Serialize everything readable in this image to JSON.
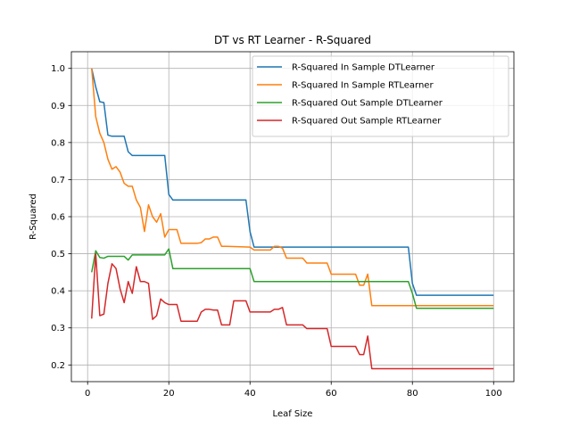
{
  "chart_data": {
    "type": "line",
    "title": "DT vs RT Learner - R-Squared",
    "xlabel": "Leaf Size",
    "ylabel": "R-Squared",
    "xlim": [
      -4.0,
      105.0
    ],
    "ylim": [
      0.155,
      1.045
    ],
    "xticks": [
      0,
      20,
      40,
      60,
      80,
      100
    ],
    "yticks": [
      0.2,
      0.3,
      0.4,
      0.5,
      0.6,
      0.7,
      0.8,
      0.9,
      1.0
    ],
    "grid": true,
    "legend_position": "top-right",
    "series": [
      {
        "name": "R-Squared In Sample DTLearner",
        "color": "#1f77b4",
        "points": [
          [
            1,
            1.0
          ],
          [
            2,
            0.95
          ],
          [
            3,
            0.91
          ],
          [
            4,
            0.908
          ],
          [
            5,
            0.82
          ],
          [
            6,
            0.817
          ],
          [
            7,
            0.817
          ],
          [
            8,
            0.817
          ],
          [
            9,
            0.817
          ],
          [
            10,
            0.775
          ],
          [
            11,
            0.765
          ],
          [
            12,
            0.765
          ],
          [
            19,
            0.765
          ],
          [
            20,
            0.66
          ],
          [
            21,
            0.645
          ],
          [
            22,
            0.645
          ],
          [
            39,
            0.645
          ],
          [
            40,
            0.56
          ],
          [
            41,
            0.518
          ],
          [
            79,
            0.518
          ],
          [
            80,
            0.42
          ],
          [
            81,
            0.388
          ],
          [
            100,
            0.388
          ]
        ]
      },
      {
        "name": "R-Squared In Sample RTLearner",
        "color": "#ff7f0e",
        "points": [
          [
            1,
            1.0
          ],
          [
            2,
            0.87
          ],
          [
            3,
            0.825
          ],
          [
            4,
            0.8
          ],
          [
            5,
            0.755
          ],
          [
            6,
            0.728
          ],
          [
            7,
            0.735
          ],
          [
            8,
            0.72
          ],
          [
            9,
            0.69
          ],
          [
            10,
            0.682
          ],
          [
            11,
            0.682
          ],
          [
            12,
            0.645
          ],
          [
            13,
            0.625
          ],
          [
            14,
            0.56
          ],
          [
            15,
            0.632
          ],
          [
            16,
            0.6
          ],
          [
            17,
            0.585
          ],
          [
            18,
            0.608
          ],
          [
            19,
            0.545
          ],
          [
            20,
            0.565
          ],
          [
            21,
            0.565
          ],
          [
            22,
            0.565
          ],
          [
            23,
            0.528
          ],
          [
            24,
            0.528
          ],
          [
            27,
            0.528
          ],
          [
            28,
            0.53
          ],
          [
            29,
            0.54
          ],
          [
            30,
            0.54
          ],
          [
            31,
            0.545
          ],
          [
            32,
            0.545
          ],
          [
            33,
            0.52
          ],
          [
            34,
            0.52
          ],
          [
            40,
            0.518
          ],
          [
            41,
            0.51
          ],
          [
            42,
            0.51
          ],
          [
            45,
            0.51
          ],
          [
            46,
            0.52
          ],
          [
            47,
            0.52
          ],
          [
            48,
            0.515
          ],
          [
            49,
            0.488
          ],
          [
            50,
            0.488
          ],
          [
            53,
            0.488
          ],
          [
            54,
            0.475
          ],
          [
            55,
            0.475
          ],
          [
            59,
            0.475
          ],
          [
            60,
            0.445
          ],
          [
            61,
            0.445
          ],
          [
            66,
            0.445
          ],
          [
            67,
            0.415
          ],
          [
            68,
            0.415
          ],
          [
            69,
            0.445
          ],
          [
            70,
            0.36
          ],
          [
            71,
            0.36
          ],
          [
            100,
            0.36
          ]
        ]
      },
      {
        "name": "R-Squared Out Sample DTLearner",
        "color": "#2ca02c",
        "points": [
          [
            1,
            0.45
          ],
          [
            2,
            0.508
          ],
          [
            3,
            0.49
          ],
          [
            4,
            0.488
          ],
          [
            5,
            0.493
          ],
          [
            6,
            0.493
          ],
          [
            9,
            0.493
          ],
          [
            10,
            0.483
          ],
          [
            11,
            0.497
          ],
          [
            12,
            0.497
          ],
          [
            19,
            0.497
          ],
          [
            20,
            0.513
          ],
          [
            21,
            0.46
          ],
          [
            22,
            0.46
          ],
          [
            40,
            0.46
          ],
          [
            41,
            0.425
          ],
          [
            42,
            0.425
          ],
          [
            79,
            0.425
          ],
          [
            80,
            0.393
          ],
          [
            81,
            0.353
          ],
          [
            100,
            0.353
          ]
        ]
      },
      {
        "name": "R-Squared Out Sample RTLearner",
        "color": "#d62728",
        "points": [
          [
            1,
            0.325
          ],
          [
            2,
            0.5
          ],
          [
            3,
            0.333
          ],
          [
            4,
            0.337
          ],
          [
            5,
            0.42
          ],
          [
            6,
            0.473
          ],
          [
            7,
            0.46
          ],
          [
            8,
            0.405
          ],
          [
            9,
            0.368
          ],
          [
            10,
            0.425
          ],
          [
            11,
            0.393
          ],
          [
            12,
            0.465
          ],
          [
            13,
            0.425
          ],
          [
            14,
            0.425
          ],
          [
            15,
            0.42
          ],
          [
            16,
            0.323
          ],
          [
            17,
            0.333
          ],
          [
            18,
            0.378
          ],
          [
            19,
            0.368
          ],
          [
            20,
            0.363
          ],
          [
            21,
            0.363
          ],
          [
            22,
            0.363
          ],
          [
            23,
            0.318
          ],
          [
            24,
            0.318
          ],
          [
            27,
            0.318
          ],
          [
            28,
            0.343
          ],
          [
            29,
            0.35
          ],
          [
            30,
            0.35
          ],
          [
            31,
            0.348
          ],
          [
            32,
            0.348
          ],
          [
            33,
            0.308
          ],
          [
            34,
            0.308
          ],
          [
            35,
            0.308
          ],
          [
            36,
            0.373
          ],
          [
            37,
            0.373
          ],
          [
            39,
            0.373
          ],
          [
            40,
            0.343
          ],
          [
            41,
            0.343
          ],
          [
            45,
            0.343
          ],
          [
            46,
            0.35
          ],
          [
            47,
            0.35
          ],
          [
            48,
            0.355
          ],
          [
            49,
            0.308
          ],
          [
            50,
            0.308
          ],
          [
            53,
            0.308
          ],
          [
            54,
            0.298
          ],
          [
            55,
            0.298
          ],
          [
            59,
            0.298
          ],
          [
            60,
            0.25
          ],
          [
            61,
            0.25
          ],
          [
            66,
            0.25
          ],
          [
            67,
            0.228
          ],
          [
            68,
            0.228
          ],
          [
            69,
            0.278
          ],
          [
            70,
            0.19
          ],
          [
            71,
            0.19
          ],
          [
            100,
            0.19
          ]
        ]
      }
    ]
  }
}
